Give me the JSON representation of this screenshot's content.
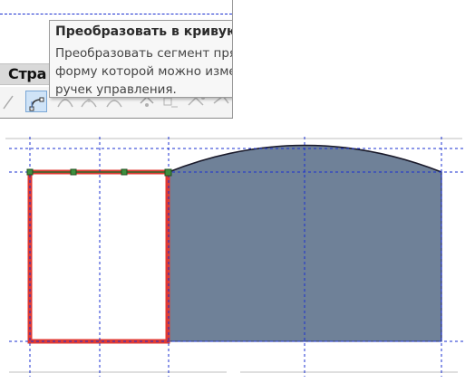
{
  "tooltip": {
    "title": "Преобразовать в кривую",
    "body_line1": "Преобразовать сегмент пря",
    "body_line2": "форму которой можно изме",
    "body_line3": "ручек управления."
  },
  "menu": {
    "label": "Стра"
  },
  "toolbar": {
    "active_tool": "convert-to-curve-icon"
  },
  "colors": {
    "shape_fill": "#6f8198",
    "selection_outline": "#e03a33",
    "guide": "#1a2fd0"
  }
}
